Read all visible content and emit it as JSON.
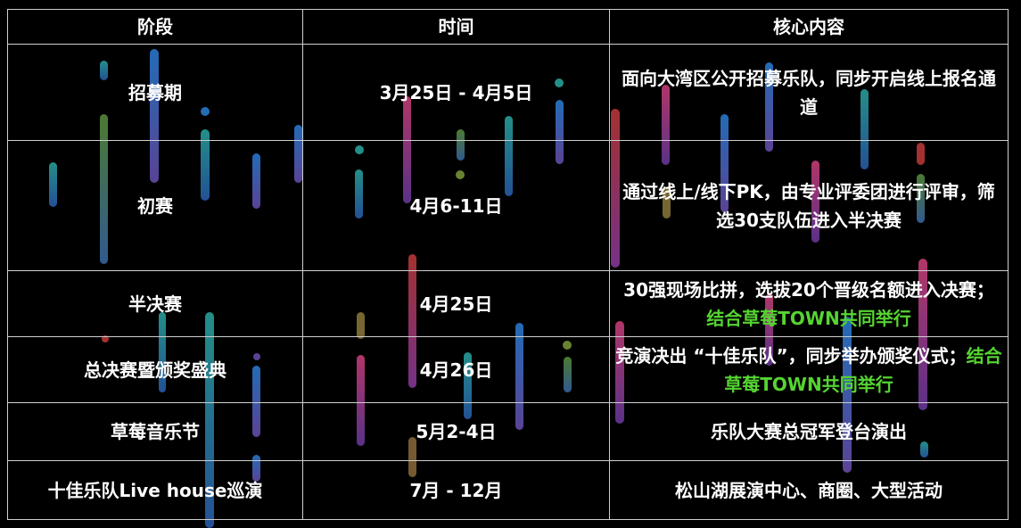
{
  "table": {
    "headers": [
      "阶段",
      "时间",
      "核心内容"
    ],
    "rows": [
      {
        "stage": "招募期",
        "time": "3月25日 - 4月5日",
        "content": "面向大湾区公开招募乐队，同步开启线上报名通道",
        "highlight": ""
      },
      {
        "stage": "初赛",
        "time": "4月6-11日",
        "content": "通过线上/线下PK，由专业评委团进行评审，筛选30支队伍进入半决赛",
        "highlight": ""
      },
      {
        "stage": "半决赛",
        "time": "4月25日",
        "content": "30强现场比拼，选拔20个晋级名额进入决赛；",
        "highlight": "结合草莓TOWN共同举行"
      },
      {
        "stage": "总决赛暨颁奖盛典",
        "time": "4月26日",
        "content": "竞演决出 “十佳乐队”，同步举办颁奖仪式；",
        "highlight": "结合草莓TOWN共同举行"
      },
      {
        "stage": "草莓音乐节",
        "time": "5月2-4日",
        "content": "乐队大赛总冠军登台演出",
        "highlight": ""
      },
      {
        "stage": "十佳乐队Live house巡演",
        "time": "7月 - 12月",
        "content": "松山湖展演中心、商圈、大型活动",
        "highlight": ""
      }
    ]
  },
  "colors": {
    "highlight": "#56d432",
    "background": "#000000",
    "text": "#ffffff",
    "border": "#cfcfcf"
  }
}
